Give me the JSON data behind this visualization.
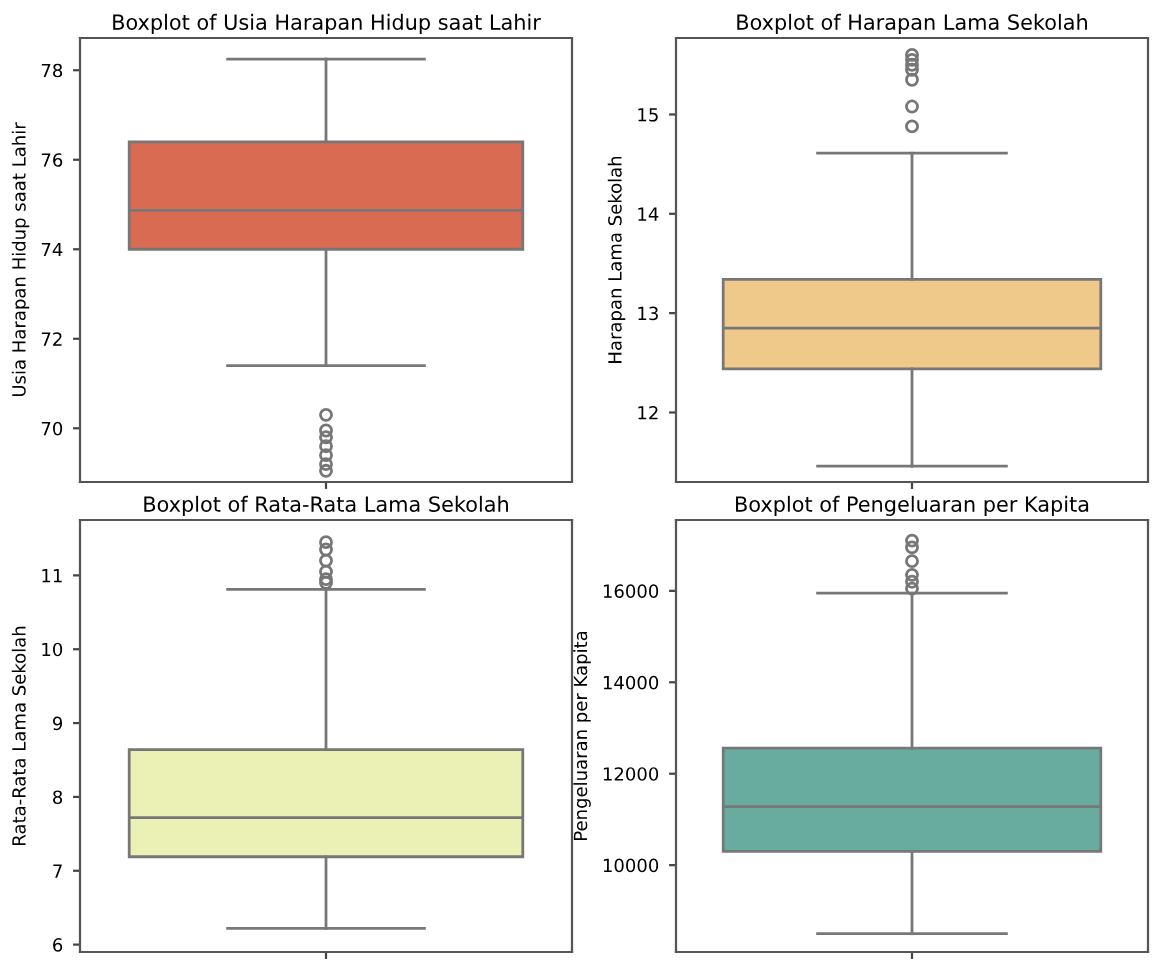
{
  "chart_data": [
    {
      "type": "box",
      "title": "Boxplot of Usia Harapan Hidup saat Lahir",
      "ylabel": "Usia Harapan Hidup saat Lahir",
      "categories": [
        null
      ],
      "color": "#d96b53",
      "ylim": [
        68.8,
        78.72
      ],
      "yticks": [
        70,
        72,
        74,
        76,
        78
      ],
      "boxes": [
        {
          "low": 71.4,
          "q1": 74.0,
          "median": 74.87,
          "q3": 76.4,
          "high": 78.25,
          "outliers": [
            70.3,
            69.95,
            69.8,
            69.6,
            69.4,
            69.2,
            69.05
          ]
        }
      ]
    },
    {
      "type": "box",
      "title": "Boxplot of Harapan Lama Sekolah",
      "ylabel": "Harapan Lama Sekolah",
      "categories": [
        null
      ],
      "color": "#eec98a",
      "ylim": [
        11.3,
        15.77
      ],
      "yticks": [
        12,
        13,
        14,
        15
      ],
      "boxes": [
        {
          "low": 11.46,
          "q1": 12.44,
          "median": 12.85,
          "q3": 13.34,
          "high": 14.61,
          "outliers": [
            15.6,
            15.55,
            15.5,
            15.45,
            15.35,
            15.08,
            14.88
          ]
        }
      ]
    },
    {
      "type": "box",
      "title": "Boxplot of Rata-Rata Lama Sekolah",
      "ylabel": "Rata-Rata Lama Sekolah",
      "categories": [
        null
      ],
      "color": "#ebf0b4",
      "ylim": [
        5.9,
        11.75
      ],
      "yticks": [
        6,
        7,
        8,
        9,
        10,
        11
      ],
      "boxes": [
        {
          "low": 6.22,
          "q1": 7.19,
          "median": 7.72,
          "q3": 8.64,
          "high": 10.81,
          "outliers": [
            11.45,
            11.35,
            11.2,
            11.05,
            10.95,
            10.9
          ]
        }
      ]
    },
    {
      "type": "box",
      "title": "Boxplot of Pengeluaran per Kapita",
      "ylabel": "Pengeluaran per Kapita",
      "categories": [
        null
      ],
      "color": "#67ac9f",
      "ylim": [
        8100,
        17550
      ],
      "yticks": [
        10000,
        12000,
        14000,
        16000
      ],
      "boxes": [
        {
          "low": 8500,
          "q1": 10300,
          "median": 11280,
          "q3": 12560,
          "high": 15950,
          "outliers": [
            17100,
            16950,
            16650,
            16350,
            16200,
            16050
          ]
        }
      ]
    }
  ]
}
